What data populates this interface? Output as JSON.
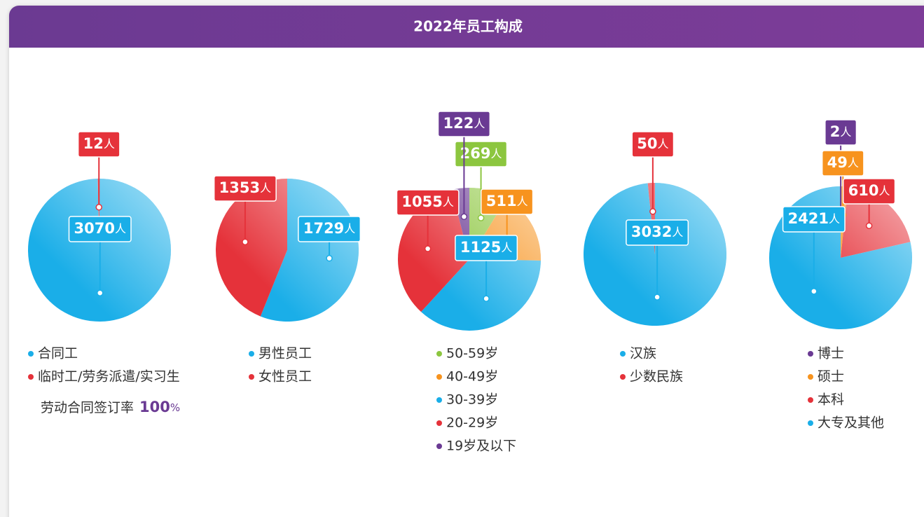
{
  "header": {
    "title": "2022年员工构成"
  },
  "chart_data": [
    {
      "type": "pie",
      "categories": [
        "合同工",
        "临时工/劳务派遣/实习生"
      ],
      "values": [
        3070,
        12
      ],
      "colors": [
        "#1aaee8",
        "#e5323a"
      ],
      "unit": "人",
      "annotation": {
        "text": "劳动合同签订率",
        "value": 100,
        "unit": "%"
      }
    },
    {
      "type": "pie",
      "categories": [
        "男性员工",
        "女性员工"
      ],
      "values": [
        1729,
        1353
      ],
      "colors": [
        "#1aaee8",
        "#e5323a"
      ],
      "unit": "人"
    },
    {
      "type": "pie",
      "categories": [
        "50-59岁",
        "40-49岁",
        "30-39岁",
        "20-29岁",
        "19岁及以下"
      ],
      "values": [
        269,
        511,
        1125,
        1055,
        122
      ],
      "colors": [
        "#8cc63f",
        "#f7931e",
        "#1aaee8",
        "#e5323a",
        "#6a3a93"
      ],
      "unit": "人"
    },
    {
      "type": "pie",
      "categories": [
        "汉族",
        "少数民族"
      ],
      "values": [
        3032,
        50
      ],
      "colors": [
        "#1aaee8",
        "#e5323a"
      ],
      "unit": "人"
    },
    {
      "type": "pie",
      "categories": [
        "博士",
        "硕士",
        "本科",
        "大专及其他"
      ],
      "values": [
        2,
        49,
        610,
        2421
      ],
      "colors": [
        "#6a3a93",
        "#f7931e",
        "#e5323a",
        "#1aaee8"
      ],
      "unit": "人"
    }
  ]
}
